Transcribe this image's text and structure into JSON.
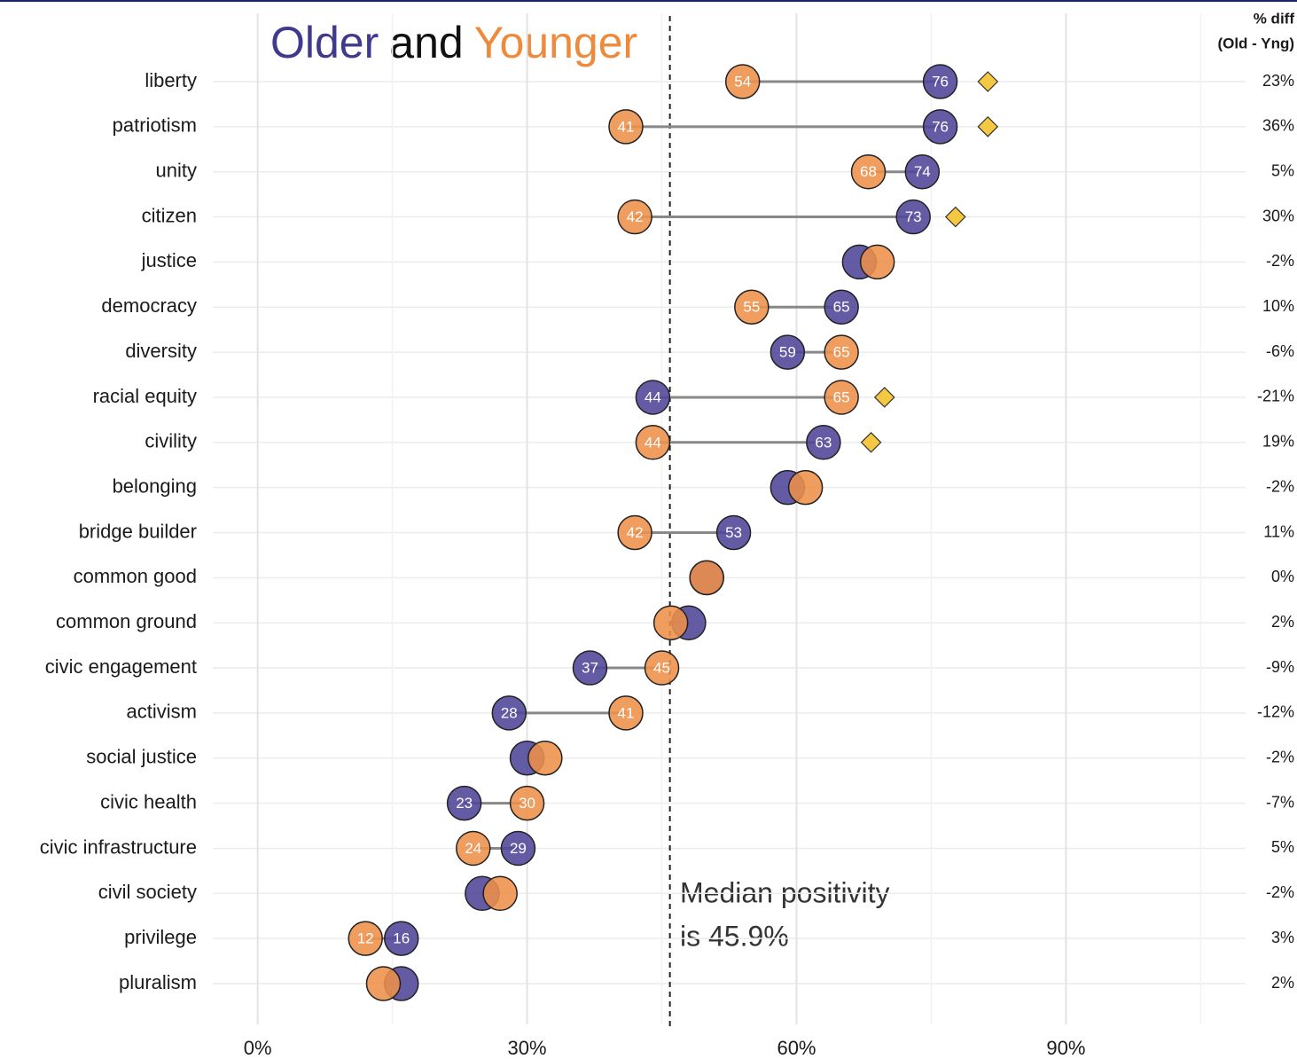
{
  "chart_data": {
    "type": "dumbbell",
    "title_parts": [
      {
        "text": "Older",
        "color": "#3f3a8c"
      },
      {
        "text": "and",
        "color": "#111111"
      },
      {
        "text": "Younger",
        "color": "#ee8a3c"
      }
    ],
    "categories": [
      "liberty",
      "patriotism",
      "unity",
      "citizen",
      "justice",
      "democracy",
      "diversity",
      "racial equity",
      "civility",
      "belonging",
      "bridge builder",
      "common good",
      "common ground",
      "civic engagement",
      "activism",
      "social justice",
      "civic health",
      "civic infrastructure",
      "civil society",
      "privilege",
      "pluralism"
    ],
    "series": [
      {
        "name": "Older",
        "color": "#4e4499",
        "values": [
          76,
          76,
          74,
          73,
          67,
          65,
          59,
          44,
          63,
          59,
          53,
          50,
          48,
          37,
          28,
          30,
          23,
          29,
          25,
          16,
          16
        ]
      },
      {
        "name": "Younger",
        "color": "#ee8f4a",
        "values": [
          54,
          41,
          68,
          42,
          69,
          55,
          65,
          65,
          44,
          61,
          42,
          50,
          46,
          45,
          41,
          32,
          30,
          24,
          27,
          12,
          14
        ]
      }
    ],
    "labeled": [
      true,
      true,
      true,
      true,
      false,
      true,
      true,
      true,
      true,
      false,
      true,
      false,
      false,
      true,
      true,
      false,
      true,
      true,
      false,
      true,
      false
    ],
    "significance_markers": {
      "color": "#f5c842",
      "values": [
        81.3,
        81.3,
        null,
        77.7,
        null,
        null,
        null,
        69.8,
        68.3,
        null,
        null,
        null,
        null,
        null,
        null,
        null,
        null,
        null,
        null,
        null,
        null
      ]
    },
    "diff_title": [
      "% diff",
      "(Old - Yng)"
    ],
    "diff": {
      "values": [
        23,
        36,
        5,
        30,
        -2,
        10,
        -6,
        -21,
        19,
        -2,
        11,
        0,
        2,
        -9,
        -12,
        -2,
        -7,
        5,
        -2,
        3,
        2
      ],
      "value_labels": [
        "23%",
        "36%",
        "5%",
        "30%",
        "-2%",
        "10%",
        "-6%",
        "-21%",
        "19%",
        "-2%",
        "11%",
        "0%",
        "2%",
        "-9%",
        "-12%",
        "-2%",
        "-7%",
        "5%",
        "-2%",
        "3%",
        "2%"
      ]
    },
    "median": 45.9,
    "annotation": [
      "Median positivity",
      "is 45.9%"
    ],
    "xlim": [
      -5,
      110
    ],
    "xticks": [
      {
        "value": 0,
        "label": "0%"
      },
      {
        "value": 30,
        "label": "30%"
      },
      {
        "value": 60,
        "label": "60%"
      },
      {
        "value": 90,
        "label": "90%"
      }
    ],
    "xminor": [
      15,
      45,
      75,
      105
    ],
    "grid": true
  }
}
